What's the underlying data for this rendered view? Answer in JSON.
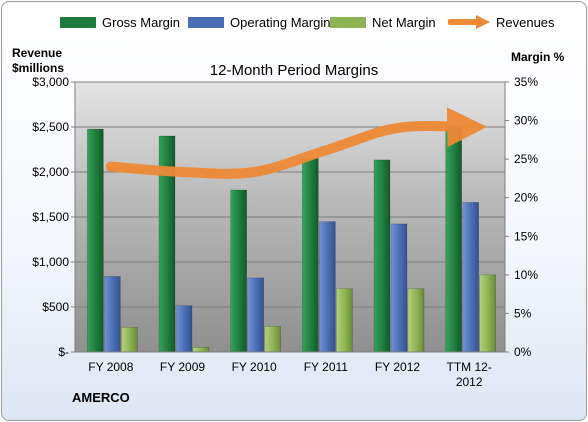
{
  "chart_data": {
    "type": "bar",
    "title": "12-Month Period Margins",
    "company": "AMERCO",
    "categories": [
      "FY 2008",
      "FY 2009",
      "FY 2010",
      "FY 2011",
      "FY 2012",
      "TTM 12-2012"
    ],
    "ylabel_left": [
      "Revenue",
      "$millions"
    ],
    "ylabel_right": "Margin %",
    "ylim_left": [
      0,
      3000
    ],
    "ylim_right": [
      0,
      35
    ],
    "left_ticks": [
      {
        "value": 0,
        "label": "$-"
      },
      {
        "value": 500,
        "label": "$500"
      },
      {
        "value": 1000,
        "label": "$1,000"
      },
      {
        "value": 1500,
        "label": "$1,500"
      },
      {
        "value": 2000,
        "label": "$2,000"
      },
      {
        "value": 2500,
        "label": "$2,500"
      },
      {
        "value": 3000,
        "label": "$3,000"
      }
    ],
    "right_ticks": [
      {
        "value": 0,
        "label": "0%"
      },
      {
        "value": 5,
        "label": "5%"
      },
      {
        "value": 10,
        "label": "10%"
      },
      {
        "value": 15,
        "label": "15%"
      },
      {
        "value": 20,
        "label": "20%"
      },
      {
        "value": 25,
        "label": "25%"
      },
      {
        "value": 30,
        "label": "30%"
      },
      {
        "value": 35,
        "label": "35%"
      }
    ],
    "series": [
      {
        "name": "Gross Margin",
        "type": "bar",
        "axis": "right",
        "color": "#1e7a3c",
        "values": [
          28.9,
          28.0,
          21.0,
          25.1,
          24.9,
          29.3
        ]
      },
      {
        "name": "Operating Margin",
        "type": "bar",
        "axis": "right",
        "color": "#4a6eb5",
        "values": [
          9.8,
          6.0,
          9.6,
          16.9,
          16.6,
          19.4
        ]
      },
      {
        "name": "Net Margin",
        "type": "bar",
        "axis": "right",
        "color": "#8db352",
        "values": [
          3.2,
          0.6,
          3.3,
          8.2,
          8.2,
          10.0
        ]
      },
      {
        "name": "Revenues",
        "type": "line",
        "axis": "left",
        "color": "#ee8a36",
        "values": [
          2060,
          2000,
          2000,
          2240,
          2490,
          2500
        ]
      }
    ],
    "grid": true,
    "legend": "top"
  }
}
